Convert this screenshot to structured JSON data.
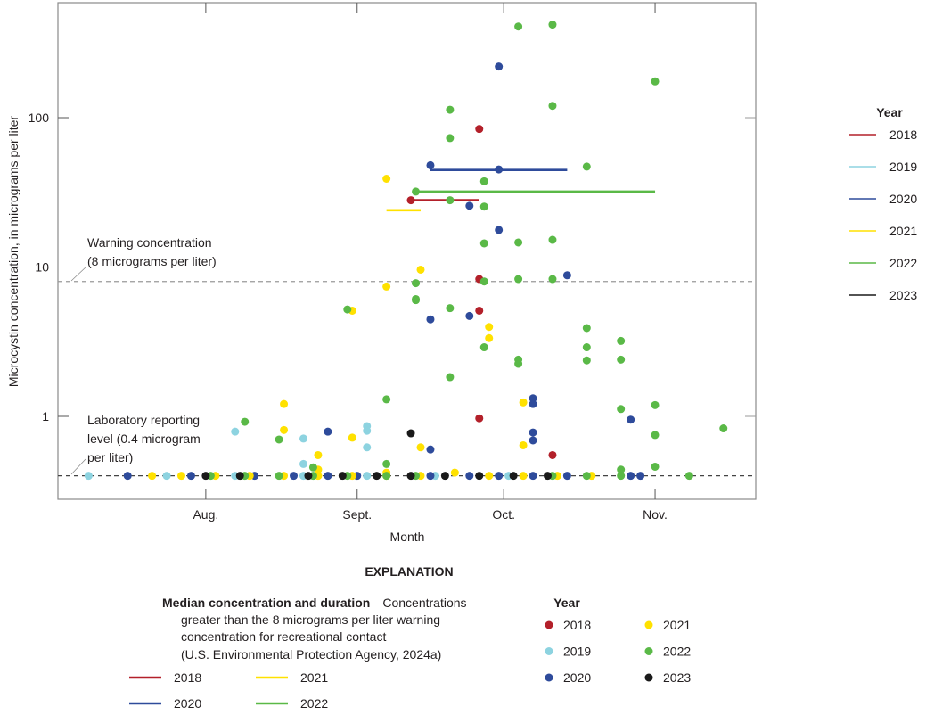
{
  "colors": {
    "2018": "#b3202a",
    "2019": "#8dd3e0",
    "2020": "#2e4b9b",
    "2021": "#ffe100",
    "2022": "#5ab947",
    "2023": "#1a1a1a"
  },
  "chart_data": {
    "type": "scatter",
    "xlabel": "Month",
    "ylabel": "Microcystin concentration, in micrograms per liter",
    "x_scale": "date",
    "xlim": [
      "07-01",
      "11-21"
    ],
    "x_ticks": [
      {
        "date": "08-01",
        "label": "Aug."
      },
      {
        "date": "09-01",
        "label": "Sept."
      },
      {
        "date": "10-01",
        "label": "Oct."
      },
      {
        "date": "11-01",
        "label": "Nov."
      }
    ],
    "y_scale": "log",
    "ylim": [
      0.28,
      590
    ],
    "y_ticks": [
      {
        "value": 1,
        "label": "1"
      },
      {
        "value": 10,
        "label": "10"
      },
      {
        "value": 100,
        "label": "100"
      }
    ],
    "grid": false,
    "reference_lines": [
      {
        "value": 8,
        "label_lines": [
          "Warning concentration",
          "(8 micrograms per liter)"
        ]
      },
      {
        "value": 0.4,
        "label_lines": [
          "Laboratory reporting",
          "level (0.4 microgram",
          "per liter)"
        ]
      }
    ],
    "series": [
      {
        "name": "2018",
        "points": [
          [
            "09-12",
            28
          ],
          [
            "09-26",
            84
          ],
          [
            "09-26",
            8.3
          ],
          [
            "09-26",
            5.1
          ],
          [
            "09-26",
            0.97
          ],
          [
            "10-11",
            0.55
          ]
        ]
      },
      {
        "name": "2019",
        "points": [
          [
            "07-08",
            0.4
          ],
          [
            "07-24",
            0.4
          ],
          [
            "08-07",
            0.4
          ],
          [
            "08-21",
            0.4
          ],
          [
            "09-03",
            0.4
          ],
          [
            "09-17",
            0.4
          ],
          [
            "10-02",
            0.4
          ],
          [
            "08-07",
            0.79
          ],
          [
            "08-21",
            0.71
          ],
          [
            "08-21",
            0.48
          ],
          [
            "09-03",
            0.86
          ],
          [
            "09-03",
            0.8
          ],
          [
            "09-03",
            0.62
          ]
        ]
      },
      {
        "name": "2020",
        "points": [
          [
            "07-16",
            0.4
          ],
          [
            "07-29",
            0.4
          ],
          [
            "08-11",
            0.4
          ],
          [
            "08-19",
            0.4
          ],
          [
            "08-26",
            0.4
          ],
          [
            "09-01",
            0.4
          ],
          [
            "09-16",
            0.4
          ],
          [
            "09-24",
            0.4
          ],
          [
            "09-30",
            0.4
          ],
          [
            "10-07",
            0.4
          ],
          [
            "10-14",
            0.4
          ],
          [
            "10-27",
            0.4
          ],
          [
            "10-29",
            0.4
          ],
          [
            "09-30",
            220
          ],
          [
            "09-16",
            48
          ],
          [
            "09-30",
            45
          ],
          [
            "09-24",
            25.7
          ],
          [
            "09-30",
            17.7
          ],
          [
            "10-14",
            8.8
          ],
          [
            "09-16",
            4.46
          ],
          [
            "09-24",
            4.7
          ],
          [
            "10-07",
            1.32
          ],
          [
            "10-07",
            1.21
          ],
          [
            "10-07",
            0.78
          ],
          [
            "10-07",
            0.69
          ],
          [
            "09-16",
            0.6
          ],
          [
            "08-26",
            0.79
          ],
          [
            "10-27",
            0.95
          ]
        ]
      },
      {
        "name": "2021",
        "points": [
          [
            "07-21",
            0.4
          ],
          [
            "07-27",
            0.4
          ],
          [
            "08-03",
            0.4
          ],
          [
            "08-10",
            0.4
          ],
          [
            "08-17",
            0.4
          ],
          [
            "08-24",
            0.4
          ],
          [
            "08-31",
            0.4
          ],
          [
            "09-07",
            0.4
          ],
          [
            "09-14",
            0.4
          ],
          [
            "09-28",
            0.4
          ],
          [
            "10-05",
            0.4
          ],
          [
            "10-12",
            0.4
          ],
          [
            "10-19",
            0.4
          ],
          [
            "09-07",
            39
          ],
          [
            "09-14",
            9.6
          ],
          [
            "09-07",
            7.4
          ],
          [
            "08-31",
            5.1
          ],
          [
            "09-28",
            3.97
          ],
          [
            "09-28",
            3.34
          ],
          [
            "10-05",
            1.24
          ],
          [
            "08-17",
            1.21
          ],
          [
            "08-17",
            0.81
          ],
          [
            "08-31",
            0.72
          ],
          [
            "10-05",
            0.64
          ],
          [
            "09-14",
            0.62
          ],
          [
            "08-24",
            0.55
          ],
          [
            "08-24",
            0.44
          ],
          [
            "09-07",
            0.42
          ],
          [
            "09-21",
            0.42
          ]
        ]
      },
      {
        "name": "2022",
        "points": [
          [
            "08-02",
            0.4
          ],
          [
            "08-09",
            0.4
          ],
          [
            "08-16",
            0.4
          ],
          [
            "08-23",
            0.4
          ],
          [
            "08-30",
            0.4
          ],
          [
            "09-07",
            0.4
          ],
          [
            "09-13",
            0.4
          ],
          [
            "10-11",
            0.4
          ],
          [
            "10-18",
            0.4
          ],
          [
            "10-25",
            0.4
          ],
          [
            "11-08",
            0.4
          ],
          [
            "10-04",
            408
          ],
          [
            "10-11",
            420
          ],
          [
            "11-01",
            175
          ],
          [
            "09-20",
            113
          ],
          [
            "10-11",
            120
          ],
          [
            "09-20",
            73
          ],
          [
            "10-18",
            47
          ],
          [
            "09-27",
            37.5
          ],
          [
            "09-13",
            32
          ],
          [
            "09-20",
            28
          ],
          [
            "09-27",
            25.4
          ],
          [
            "09-27",
            14.4
          ],
          [
            "10-04",
            14.6
          ],
          [
            "10-11",
            15.2
          ],
          [
            "09-27",
            8
          ],
          [
            "10-04",
            8.3
          ],
          [
            "10-11",
            8.3
          ],
          [
            "09-13",
            7.8
          ],
          [
            "09-13",
            6.1
          ],
          [
            "09-13",
            6.0
          ],
          [
            "08-30",
            5.2
          ],
          [
            "09-20",
            5.3
          ],
          [
            "10-18",
            3.9
          ],
          [
            "10-25",
            3.2
          ],
          [
            "09-27",
            2.9
          ],
          [
            "10-18",
            2.9
          ],
          [
            "10-25",
            2.4
          ],
          [
            "10-04",
            2.4
          ],
          [
            "10-04",
            2.25
          ],
          [
            "10-18",
            2.37
          ],
          [
            "09-20",
            1.83
          ],
          [
            "09-07",
            1.3
          ],
          [
            "10-25",
            1.12
          ],
          [
            "11-01",
            1.19
          ],
          [
            "08-09",
            0.92
          ],
          [
            "11-15",
            0.83
          ],
          [
            "11-01",
            0.75
          ],
          [
            "08-16",
            0.7
          ],
          [
            "09-07",
            0.48
          ],
          [
            "11-01",
            0.46
          ],
          [
            "08-23",
            0.455
          ],
          [
            "10-25",
            0.44
          ]
        ]
      },
      {
        "name": "2023",
        "points": [
          [
            "08-01",
            0.4
          ],
          [
            "08-08",
            0.4
          ],
          [
            "08-22",
            0.4
          ],
          [
            "08-29",
            0.4
          ],
          [
            "09-05",
            0.4
          ],
          [
            "09-12",
            0.4
          ],
          [
            "09-19",
            0.4
          ],
          [
            "09-26",
            0.4
          ],
          [
            "10-03",
            0.4
          ],
          [
            "10-10",
            0.4
          ],
          [
            "09-12",
            0.77
          ]
        ]
      }
    ],
    "medians": [
      {
        "name": "2018",
        "start": "09-12",
        "end": "09-26",
        "value": 28
      },
      {
        "name": "2020",
        "start": "09-16",
        "end": "10-14",
        "value": 44.6
      },
      {
        "name": "2021",
        "start": "09-07",
        "end": "09-14",
        "value": 24
      },
      {
        "name": "2022",
        "start": "09-13",
        "end": "11-01",
        "value": 32
      }
    ],
    "legend_lines": {
      "title": "Year",
      "placement": "right",
      "entries": [
        "2018",
        "2019",
        "2020",
        "2021",
        "2022",
        "2023"
      ]
    }
  },
  "explanation": {
    "title": "EXPLANATION",
    "median_bold": "Median concentration and duration",
    "median_rest": "—Concentrations",
    "median_lines": [
      "greater than the 8 micrograms per liter warning",
      "concentration for recreational contact",
      "(U.S. Environmental Protection Agency, 2024a)"
    ],
    "median_entries": [
      "2018",
      "2021",
      "2020",
      "2022"
    ],
    "points_title": "Year",
    "point_entries": [
      "2018",
      "2021",
      "2019",
      "2022",
      "2020",
      "2023"
    ]
  }
}
